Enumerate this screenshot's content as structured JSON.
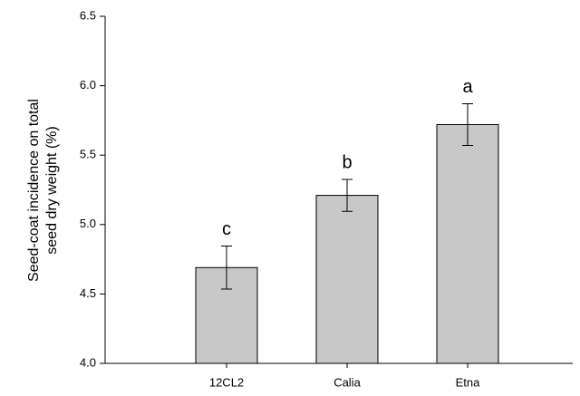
{
  "chart_data": {
    "type": "bar",
    "ylabel": [
      "Seed-coat incidence on total",
      "seed dry weight (%)"
    ],
    "categories": [
      "12CL2",
      "Calia",
      "Etna"
    ],
    "values": [
      4.69,
      5.21,
      5.72
    ],
    "errors": [
      0.155,
      0.115,
      0.15
    ],
    "annotations": [
      "c",
      "b",
      "a"
    ],
    "color": "#c8c8c8",
    "ylim": [
      4,
      6.5
    ],
    "yticks": [
      {
        "value": 4,
        "label": "4.0"
      },
      4.5,
      {
        "value": 5,
        "label": "5.0"
      },
      5.5,
      {
        "value": 6,
        "label": "6.0"
      },
      6.5
    ]
  }
}
